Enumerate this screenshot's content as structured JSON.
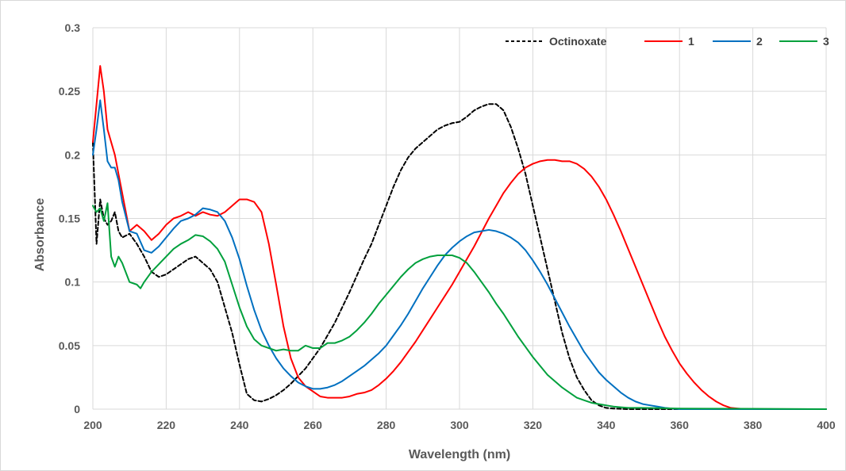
{
  "chart_data": {
    "type": "line",
    "title": "",
    "xlabel": "Wavelength (nm)",
    "ylabel": "Absorbance",
    "xlim": [
      200,
      400
    ],
    "ylim": [
      0,
      0.3
    ],
    "x_ticks": [
      "200",
      "220",
      "240",
      "260",
      "280",
      "300",
      "320",
      "340",
      "360",
      "380",
      "400"
    ],
    "y_ticks": [
      "0",
      "0.05",
      "0.1",
      "0.15",
      "0.2",
      "0.25",
      "0.3"
    ],
    "grid": true,
    "legend_position": "top-right",
    "series": [
      {
        "name": "Octinoxate",
        "color": "#000000",
        "dash": "dashed",
        "x": [
          200,
          201,
          202,
          203,
          204,
          205,
          206,
          207,
          208,
          210,
          212,
          214,
          216,
          218,
          220,
          222,
          224,
          226,
          228,
          230,
          232,
          234,
          236,
          238,
          240,
          242,
          244,
          246,
          248,
          250,
          252,
          254,
          256,
          258,
          260,
          262,
          264,
          266,
          268,
          270,
          272,
          274,
          276,
          278,
          280,
          282,
          284,
          286,
          288,
          290,
          292,
          294,
          296,
          298,
          300,
          302,
          304,
          306,
          308,
          310,
          312,
          314,
          316,
          318,
          320,
          322,
          324,
          326,
          328,
          330,
          332,
          334,
          336,
          338,
          340,
          342,
          344,
          346,
          350,
          360,
          380,
          400
        ],
        "y": [
          0.21,
          0.13,
          0.165,
          0.15,
          0.145,
          0.148,
          0.155,
          0.14,
          0.135,
          0.138,
          0.13,
          0.12,
          0.108,
          0.104,
          0.106,
          0.11,
          0.114,
          0.118,
          0.12,
          0.115,
          0.11,
          0.1,
          0.08,
          0.06,
          0.035,
          0.012,
          0.007,
          0.006,
          0.008,
          0.011,
          0.015,
          0.02,
          0.026,
          0.032,
          0.04,
          0.048,
          0.058,
          0.068,
          0.08,
          0.092,
          0.105,
          0.118,
          0.13,
          0.145,
          0.16,
          0.175,
          0.188,
          0.198,
          0.205,
          0.21,
          0.215,
          0.22,
          0.223,
          0.225,
          0.226,
          0.23,
          0.235,
          0.238,
          0.24,
          0.24,
          0.235,
          0.222,
          0.205,
          0.185,
          0.16,
          0.135,
          0.11,
          0.085,
          0.06,
          0.04,
          0.025,
          0.015,
          0.007,
          0.003,
          0.001,
          0.0005,
          0.0002,
          0,
          0,
          0,
          0,
          0
        ]
      },
      {
        "name": "1",
        "color": "#ff0000",
        "dash": "solid",
        "x": [
          200,
          201,
          202,
          203,
          204,
          205,
          206,
          207,
          208,
          210,
          212,
          214,
          216,
          218,
          220,
          222,
          224,
          226,
          228,
          230,
          232,
          234,
          236,
          238,
          240,
          242,
          244,
          246,
          248,
          250,
          252,
          254,
          256,
          258,
          260,
          262,
          264,
          266,
          268,
          270,
          272,
          274,
          276,
          278,
          280,
          282,
          284,
          286,
          288,
          290,
          292,
          294,
          296,
          298,
          300,
          302,
          304,
          306,
          308,
          310,
          312,
          314,
          316,
          318,
          320,
          322,
          324,
          326,
          328,
          330,
          332,
          334,
          336,
          338,
          340,
          342,
          344,
          346,
          348,
          350,
          352,
          354,
          356,
          358,
          360,
          362,
          364,
          366,
          368,
          370,
          372,
          374,
          376,
          378,
          380,
          385,
          390,
          400
        ],
        "y": [
          0.21,
          0.24,
          0.27,
          0.25,
          0.22,
          0.21,
          0.2,
          0.185,
          0.17,
          0.14,
          0.145,
          0.14,
          0.133,
          0.138,
          0.145,
          0.15,
          0.152,
          0.155,
          0.152,
          0.155,
          0.153,
          0.152,
          0.155,
          0.16,
          0.165,
          0.165,
          0.163,
          0.155,
          0.13,
          0.098,
          0.065,
          0.04,
          0.025,
          0.018,
          0.014,
          0.01,
          0.009,
          0.009,
          0.009,
          0.01,
          0.012,
          0.013,
          0.015,
          0.019,
          0.024,
          0.03,
          0.037,
          0.045,
          0.053,
          0.062,
          0.071,
          0.08,
          0.089,
          0.098,
          0.108,
          0.118,
          0.128,
          0.139,
          0.15,
          0.16,
          0.17,
          0.178,
          0.185,
          0.19,
          0.193,
          0.195,
          0.196,
          0.196,
          0.195,
          0.195,
          0.193,
          0.189,
          0.183,
          0.175,
          0.165,
          0.153,
          0.14,
          0.126,
          0.112,
          0.098,
          0.084,
          0.07,
          0.057,
          0.046,
          0.036,
          0.028,
          0.021,
          0.015,
          0.01,
          0.006,
          0.003,
          0.001,
          0.0005,
          0,
          0,
          0,
          0,
          0
        ]
      },
      {
        "name": "2",
        "color": "#0070c0",
        "dash": "solid",
        "x": [
          200,
          201,
          202,
          203,
          204,
          205,
          206,
          207,
          208,
          210,
          212,
          214,
          216,
          218,
          220,
          222,
          224,
          226,
          228,
          230,
          232,
          234,
          236,
          238,
          240,
          242,
          244,
          246,
          248,
          250,
          252,
          254,
          256,
          258,
          260,
          262,
          264,
          266,
          268,
          270,
          272,
          274,
          276,
          278,
          280,
          282,
          284,
          286,
          288,
          290,
          292,
          294,
          296,
          298,
          300,
          302,
          304,
          306,
          308,
          310,
          312,
          314,
          316,
          318,
          320,
          322,
          324,
          326,
          328,
          330,
          332,
          334,
          336,
          338,
          340,
          342,
          344,
          346,
          348,
          350,
          352,
          354,
          356,
          358,
          360,
          365,
          370,
          400
        ],
        "y": [
          0.2,
          0.22,
          0.243,
          0.22,
          0.195,
          0.19,
          0.19,
          0.18,
          0.163,
          0.14,
          0.138,
          0.125,
          0.123,
          0.128,
          0.135,
          0.142,
          0.148,
          0.15,
          0.153,
          0.158,
          0.157,
          0.155,
          0.148,
          0.135,
          0.118,
          0.097,
          0.078,
          0.062,
          0.05,
          0.04,
          0.032,
          0.026,
          0.021,
          0.018,
          0.016,
          0.016,
          0.017,
          0.019,
          0.022,
          0.026,
          0.03,
          0.034,
          0.039,
          0.044,
          0.05,
          0.058,
          0.066,
          0.075,
          0.085,
          0.095,
          0.104,
          0.113,
          0.121,
          0.127,
          0.132,
          0.136,
          0.139,
          0.14,
          0.141,
          0.14,
          0.138,
          0.135,
          0.131,
          0.125,
          0.117,
          0.108,
          0.098,
          0.087,
          0.076,
          0.065,
          0.055,
          0.045,
          0.037,
          0.029,
          0.023,
          0.018,
          0.013,
          0.009,
          0.006,
          0.004,
          0.003,
          0.002,
          0.001,
          0.0005,
          0,
          0,
          0,
          0
        ]
      },
      {
        "name": "3",
        "color": "#00a03c",
        "dash": "solid",
        "x": [
          200,
          201,
          202,
          203,
          204,
          205,
          206,
          207,
          208,
          210,
          212,
          213,
          214,
          216,
          218,
          220,
          222,
          224,
          226,
          228,
          230,
          232,
          234,
          236,
          238,
          240,
          242,
          244,
          246,
          248,
          250,
          252,
          254,
          256,
          258,
          260,
          262,
          264,
          266,
          268,
          270,
          272,
          274,
          276,
          278,
          280,
          282,
          284,
          286,
          288,
          290,
          292,
          294,
          296,
          298,
          300,
          302,
          304,
          306,
          308,
          310,
          312,
          314,
          316,
          318,
          320,
          322,
          324,
          326,
          328,
          330,
          332,
          334,
          336,
          338,
          340,
          342,
          344,
          346,
          348,
          350,
          355,
          360,
          380,
          400
        ],
        "y": [
          0.16,
          0.155,
          0.158,
          0.148,
          0.162,
          0.12,
          0.112,
          0.12,
          0.115,
          0.1,
          0.098,
          0.095,
          0.1,
          0.108,
          0.114,
          0.12,
          0.126,
          0.13,
          0.133,
          0.137,
          0.136,
          0.132,
          0.126,
          0.116,
          0.098,
          0.08,
          0.065,
          0.055,
          0.05,
          0.048,
          0.046,
          0.047,
          0.046,
          0.046,
          0.05,
          0.048,
          0.048,
          0.052,
          0.052,
          0.054,
          0.057,
          0.062,
          0.068,
          0.075,
          0.083,
          0.09,
          0.097,
          0.104,
          0.11,
          0.115,
          0.118,
          0.12,
          0.121,
          0.121,
          0.121,
          0.119,
          0.115,
          0.108,
          0.1,
          0.092,
          0.083,
          0.075,
          0.066,
          0.057,
          0.049,
          0.041,
          0.034,
          0.027,
          0.022,
          0.017,
          0.013,
          0.009,
          0.007,
          0.005,
          0.004,
          0.003,
          0.002,
          0.0015,
          0.001,
          0.001,
          0.001,
          0.0008,
          0.0005,
          0.0003,
          0
        ]
      }
    ]
  }
}
